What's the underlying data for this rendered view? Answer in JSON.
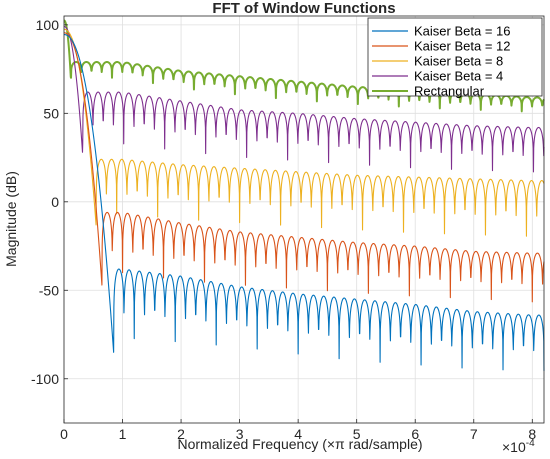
{
  "chart_data": {
    "type": "line",
    "title": "FFT of Window Functions",
    "xlabel": "Normalized Frequency  (×π rad/sample)",
    "ylabel": "Magnitude (dB)",
    "x_exponent": "×10",
    "x_exponent_power": "-4",
    "xlim": [
      0,
      8.2
    ],
    "ylim": [
      -125,
      105
    ],
    "x_ticks": [
      0,
      1,
      2,
      3,
      4,
      5,
      6,
      7,
      8
    ],
    "y_ticks": [
      100,
      50,
      0,
      -50,
      -100
    ],
    "grid": true,
    "legend_placement": "top-right",
    "series": [
      {
        "name": "Kaiser Beta = 16",
        "color": "#0072BD",
        "main_lobe_width": 0.85,
        "peak": 94.5,
        "x": [
          1,
          2,
          3,
          4,
          5,
          6,
          7,
          8
        ],
        "sidelobe_peak": [
          -38,
          -42,
          -48,
          -52,
          -55,
          -58,
          -62,
          -64
        ],
        "null_depth": [
          -86,
          -88,
          -90,
          -94,
          -98,
          -100,
          -102,
          -103
        ],
        "spacing": 0.175
      },
      {
        "name": "Kaiser Beta = 12",
        "color": "#D95319",
        "main_lobe_width": 0.65,
        "peak": 95.5,
        "x": [
          1,
          2,
          3,
          4,
          5,
          6,
          7,
          8
        ],
        "sidelobe_peak": [
          -6,
          -12,
          -17,
          -20,
          -23,
          -25,
          -28,
          -29
        ],
        "null_depth": [
          -48,
          -52,
          -54,
          -56,
          -58,
          -60,
          -61,
          -63
        ],
        "spacing": 0.175
      },
      {
        "name": "Kaiser Beta = 8",
        "color": "#EDB120",
        "main_lobe_width": 0.55,
        "peak": 97.5,
        "x": [
          1,
          2,
          3,
          4,
          5,
          6,
          7,
          8
        ],
        "sidelobe_peak": [
          24,
          21,
          19,
          17,
          15,
          14,
          13,
          12
        ],
        "null_depth": [
          -14,
          -17,
          -19,
          -21,
          -23,
          -25,
          -26,
          -27
        ],
        "spacing": 0.175
      },
      {
        "name": "Kaiser Beta = 4",
        "color": "#7E2F8E",
        "main_lobe_width": 0.32,
        "peak": 99.0,
        "x": [
          1,
          2,
          3,
          4,
          5,
          6,
          7,
          8
        ],
        "sidelobe_peak": [
          62,
          57,
          52,
          50,
          47,
          45,
          43,
          42
        ],
        "null_depth": [
          26,
          22,
          19,
          17,
          15,
          13,
          12,
          11
        ],
        "spacing": 0.175
      },
      {
        "name": "Rectangular",
        "color": "#77AC30",
        "main_lobe_width": 0.12,
        "peak": 102.5,
        "x": [
          1,
          2,
          3,
          4,
          5,
          6,
          7,
          8
        ],
        "sidelobe_peak": [
          79,
          74,
          71,
          68,
          65,
          63,
          61,
          59
        ],
        "null_depth": [
          68,
          62,
          58,
          55,
          53,
          51,
          50,
          49
        ],
        "spacing": 0.175
      }
    ]
  }
}
